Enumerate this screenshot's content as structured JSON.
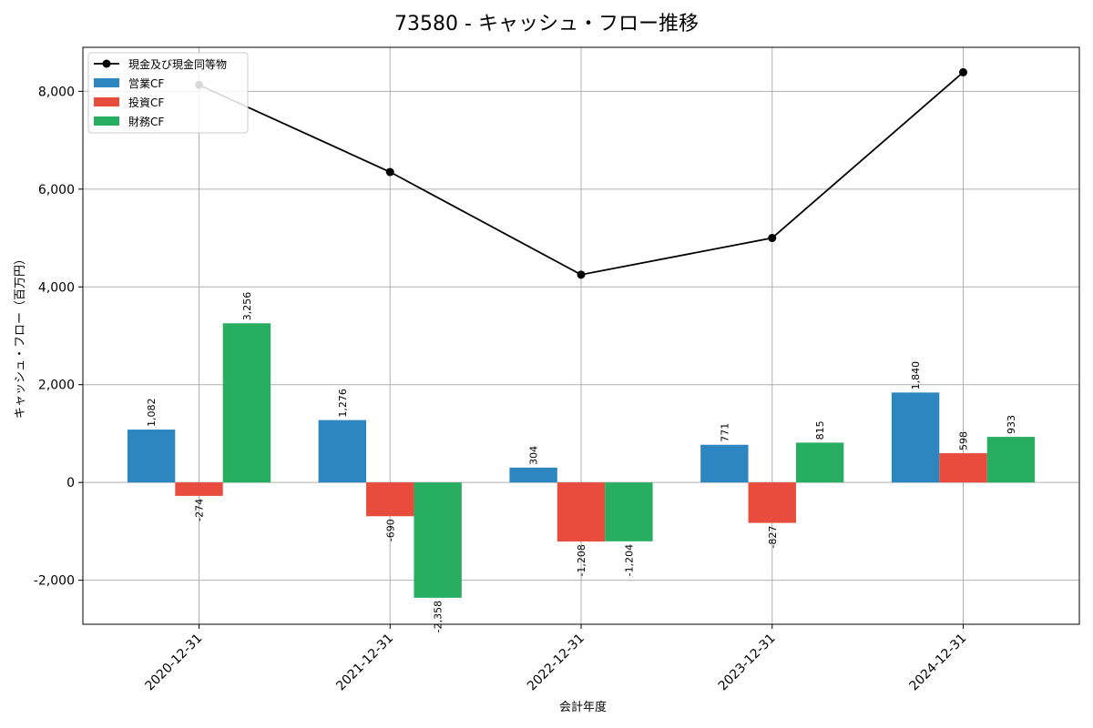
{
  "chart_data": {
    "type": "bar+line",
    "title": "73580 - キャッシュ・フロー推移",
    "xlabel": "会計年度",
    "ylabel": "キャッシュ・フロー（百万円）",
    "ylim": [
      -2900,
      8900
    ],
    "yticks": [
      -2000,
      0,
      2000,
      4000,
      6000,
      8000
    ],
    "ytick_labels": [
      "-2,000",
      "0",
      "2,000",
      "4,000",
      "6,000",
      "8,000"
    ],
    "grid": true,
    "legend_position": "top-left",
    "categories": [
      "2020-12-31",
      "2021-12-31",
      "2022-12-31",
      "2023-12-31",
      "2024-12-31"
    ],
    "bar_series": [
      {
        "name": "営業CF",
        "color": "#2e86c1",
        "values": [
          1082,
          1276,
          304,
          771,
          1840
        ],
        "labels": [
          "1,082",
          "1,276",
          "304",
          "771",
          "1,840"
        ]
      },
      {
        "name": "投資CF",
        "color": "#e74c3c",
        "values": [
          -274,
          -690,
          -1208,
          -827,
          598
        ],
        "labels": [
          "-274",
          "-690",
          "-1,208",
          "-827",
          "598"
        ]
      },
      {
        "name": "財務CF",
        "color": "#27ae60",
        "values": [
          3256,
          -2358,
          -1204,
          815,
          933
        ],
        "labels": [
          "3,256",
          "-2,358",
          "-1,204",
          "815",
          "933"
        ]
      }
    ],
    "line_series": {
      "name": "現金及び現金同等物",
      "color": "#000000",
      "values": [
        8130,
        6350,
        4250,
        5000,
        8390
      ]
    }
  }
}
